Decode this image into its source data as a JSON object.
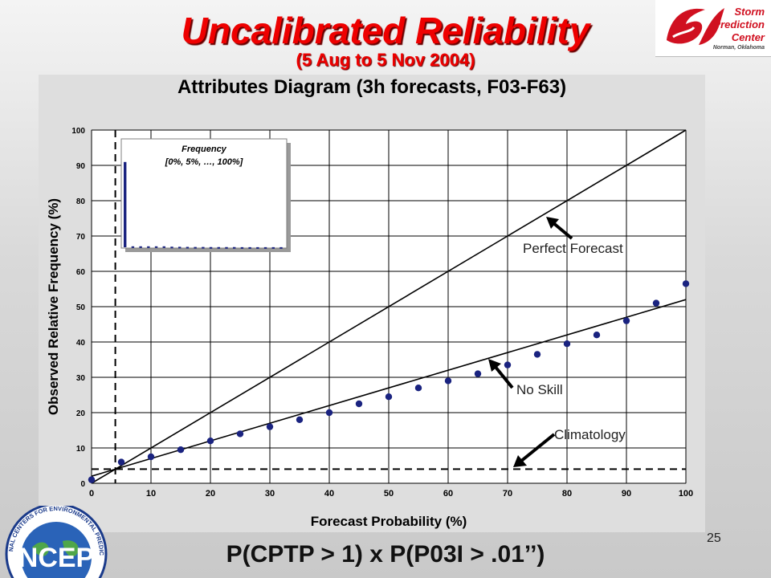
{
  "slide": {
    "title": "Uncalibrated Reliability",
    "subtitle": "(5 Aug to 5 Nov 2004)",
    "page_number": "25",
    "formula": "P(CPTP > 1) x P(P03I > .01’’)"
  },
  "logos": {
    "spc": {
      "line1": "Storm",
      "line2": "Prediction",
      "line3": "Center",
      "tagline": "Norman, Oklahoma"
    },
    "ncep": {
      "text": "NCEP",
      "ring_text": "NATIONAL CENTERS FOR ENVIRONMENTAL PREDICTION"
    }
  },
  "chart_data": {
    "type": "scatter",
    "title": "Attributes Diagram (3h forecasts, F03-F63)",
    "xlabel": "Forecast Probability (%)",
    "ylabel": "Observed Relative Frequency (%)",
    "xlim": [
      0,
      100
    ],
    "ylim": [
      0,
      100
    ],
    "x_ticks": [
      "0",
      "10",
      "20",
      "30",
      "40",
      "50",
      "60",
      "70",
      "80",
      "90",
      "100"
    ],
    "y_ticks": [
      "0",
      "10",
      "20",
      "30",
      "40",
      "50",
      "60",
      "70",
      "80",
      "90",
      "100"
    ],
    "grid": true,
    "points": {
      "x": [
        0,
        5,
        10,
        15,
        20,
        25,
        30,
        35,
        40,
        45,
        50,
        55,
        60,
        65,
        70,
        75,
        80,
        85,
        90,
        95,
        100
      ],
      "y": [
        1,
        6,
        7.5,
        9.5,
        12,
        14,
        16,
        18,
        20,
        22.5,
        24.5,
        27,
        29,
        31,
        33.5,
        36.5,
        39.5,
        42,
        46,
        51,
        56.5
      ]
    },
    "color": "#1a2380",
    "reference_lines": {
      "perfect_forecast": {
        "label": "Perfect Forecast",
        "from": [
          0,
          0
        ],
        "to": [
          100,
          100
        ]
      },
      "no_skill": {
        "label": "No Skill",
        "from": [
          0,
          2
        ],
        "to": [
          100,
          52
        ]
      },
      "climatology": {
        "label": "Climatology",
        "y": 4
      },
      "climatology_vertical": {
        "x": 4
      }
    },
    "inset": {
      "title_line1": "Frequency",
      "title_line2": "[0%, 5%, …, 100%]",
      "type": "bar",
      "values": [
        90,
        1,
        1,
        1,
        1,
        1,
        0.6,
        0.5,
        0.4,
        0.3,
        0.3,
        0.2,
        0.2,
        0.2,
        0.2,
        0.1,
        0.1,
        0.1,
        0.1,
        0.1,
        0.1
      ],
      "ylim": [
        0,
        100
      ]
    }
  }
}
